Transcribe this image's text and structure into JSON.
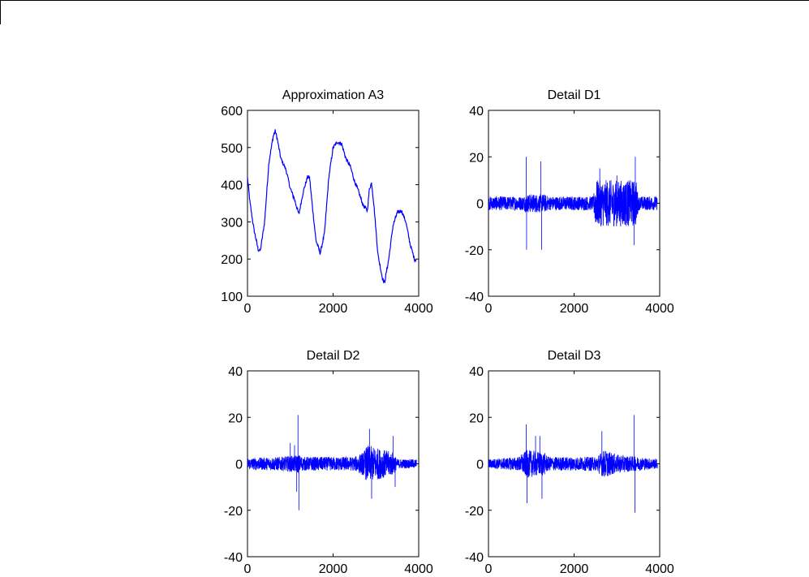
{
  "page": {
    "background": "#ffffff"
  },
  "chart_data": [
    {
      "type": "line",
      "title": "Approximation A3",
      "xlabel": "",
      "ylabel": "",
      "xlim": [
        0,
        4000
      ],
      "ylim": [
        100,
        600
      ],
      "xticks": [
        0,
        2000,
        4000
      ],
      "yticks": [
        100,
        200,
        300,
        400,
        500,
        600
      ],
      "grid": false,
      "color": "#0000ff",
      "kind": "smooth",
      "points": [
        [
          0,
          420
        ],
        [
          60,
          350
        ],
        [
          150,
          280
        ],
        [
          250,
          225
        ],
        [
          300,
          222
        ],
        [
          400,
          300
        ],
        [
          500,
          460
        ],
        [
          600,
          530
        ],
        [
          650,
          545
        ],
        [
          700,
          520
        ],
        [
          780,
          470
        ],
        [
          900,
          440
        ],
        [
          1000,
          390
        ],
        [
          1100,
          360
        ],
        [
          1200,
          320
        ],
        [
          1300,
          380
        ],
        [
          1400,
          420
        ],
        [
          1450,
          420
        ],
        [
          1500,
          360
        ],
        [
          1600,
          250
        ],
        [
          1700,
          215
        ],
        [
          1800,
          270
        ],
        [
          1900,
          420
        ],
        [
          2000,
          500
        ],
        [
          2100,
          515
        ],
        [
          2200,
          510
        ],
        [
          2300,
          470
        ],
        [
          2400,
          450
        ],
        [
          2500,
          410
        ],
        [
          2600,
          380
        ],
        [
          2700,
          345
        ],
        [
          2800,
          330
        ],
        [
          2850,
          390
        ],
        [
          2900,
          405
        ],
        [
          2950,
          350
        ],
        [
          3050,
          210
        ],
        [
          3150,
          150
        ],
        [
          3200,
          135
        ],
        [
          3300,
          200
        ],
        [
          3400,
          290
        ],
        [
          3500,
          325
        ],
        [
          3600,
          330
        ],
        [
          3700,
          300
        ],
        [
          3800,
          240
        ],
        [
          3900,
          200
        ],
        [
          4000,
          195
        ]
      ]
    },
    {
      "type": "line",
      "title": "Detail D1",
      "xlabel": "",
      "ylabel": "",
      "xlim": [
        0,
        4000
      ],
      "ylim": [
        -40,
        40
      ],
      "xticks": [
        0,
        2000,
        4000
      ],
      "yticks": [
        -40,
        -20,
        0,
        20,
        40
      ],
      "grid": false,
      "color": "#0000ff",
      "kind": "noise",
      "envelope": [
        [
          0,
          3
        ],
        [
          800,
          3
        ],
        [
          900,
          4
        ],
        [
          1300,
          4
        ],
        [
          1400,
          3
        ],
        [
          2450,
          3
        ],
        [
          2500,
          10
        ],
        [
          3450,
          10
        ],
        [
          3500,
          3
        ],
        [
          4000,
          3
        ]
      ],
      "spikes": [
        [
          880,
          20
        ],
        [
          890,
          -20
        ],
        [
          1220,
          18
        ],
        [
          1240,
          -20
        ],
        [
          2600,
          15
        ],
        [
          3000,
          12
        ],
        [
          3400,
          -18
        ],
        [
          3430,
          20
        ]
      ]
    },
    {
      "type": "line",
      "title": "Detail D2",
      "xlabel": "",
      "ylabel": "",
      "xlim": [
        0,
        4000
      ],
      "ylim": [
        -40,
        40
      ],
      "xticks": [
        0,
        2000,
        4000
      ],
      "yticks": [
        -40,
        -20,
        0,
        20,
        40
      ],
      "grid": false,
      "color": "#0000ff",
      "kind": "noise",
      "envelope": [
        [
          0,
          2.5
        ],
        [
          800,
          3
        ],
        [
          1200,
          4
        ],
        [
          1300,
          3
        ],
        [
          2500,
          3
        ],
        [
          2700,
          5
        ],
        [
          2800,
          8
        ],
        [
          3400,
          5
        ],
        [
          3500,
          2
        ],
        [
          4000,
          2
        ]
      ],
      "spikes": [
        [
          1000,
          9
        ],
        [
          1100,
          8
        ],
        [
          1150,
          -12
        ],
        [
          1180,
          21
        ],
        [
          1200,
          -20
        ],
        [
          2850,
          15
        ],
        [
          2900,
          -15
        ],
        [
          3400,
          12
        ],
        [
          3450,
          -10
        ]
      ]
    },
    {
      "type": "line",
      "title": "Detail D3",
      "xlabel": "",
      "ylabel": "",
      "xlim": [
        0,
        4000
      ],
      "ylim": [
        -40,
        40
      ],
      "xticks": [
        0,
        2000,
        4000
      ],
      "yticks": [
        -40,
        -20,
        0,
        20,
        40
      ],
      "grid": false,
      "color": "#0000ff",
      "kind": "noise",
      "envelope": [
        [
          0,
          2
        ],
        [
          700,
          3
        ],
        [
          900,
          6
        ],
        [
          1300,
          5
        ],
        [
          1400,
          3
        ],
        [
          2000,
          3
        ],
        [
          2500,
          3
        ],
        [
          2700,
          6
        ],
        [
          3000,
          4
        ],
        [
          3500,
          3
        ],
        [
          4000,
          2
        ]
      ],
      "spikes": [
        [
          880,
          17
        ],
        [
          900,
          -17
        ],
        [
          1100,
          12
        ],
        [
          1200,
          12
        ],
        [
          1250,
          -15
        ],
        [
          2650,
          14
        ],
        [
          3400,
          21
        ],
        [
          3420,
          -21
        ]
      ]
    }
  ]
}
